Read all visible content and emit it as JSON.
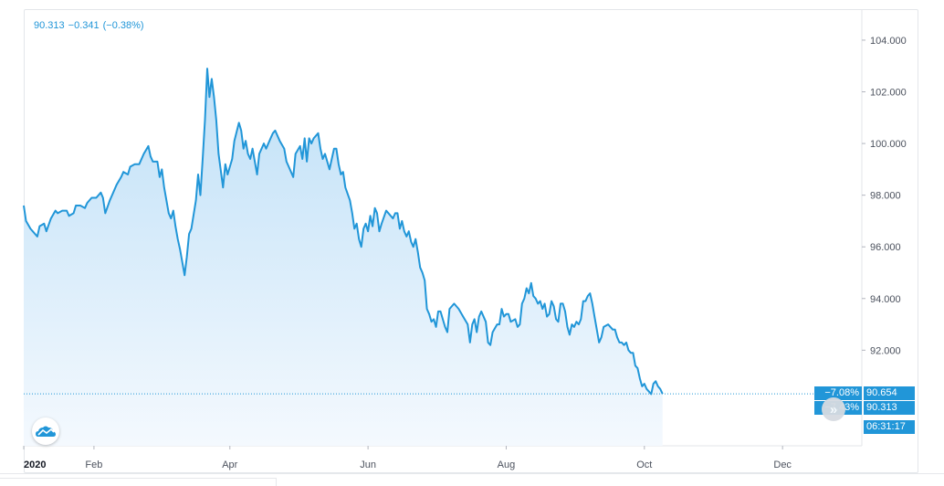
{
  "legend": {
    "last": "90.313",
    "change": "−0.341",
    "change_pct": "(−0.38%)"
  },
  "price_tags": {
    "upper_pct": "−7.08%",
    "upper_value": "90.654",
    "lower_pct": "−7.43%",
    "lower_value": "90.313",
    "countdown": "06:31:17"
  },
  "icons": {
    "logo": "tradingview-cloud-icon",
    "scroll": "double-chevron-right-icon"
  },
  "colors": {
    "line": "#2196d8",
    "fill_top": "#bfe0f7",
    "fill_bottom": "#f4f9fe",
    "tag": "#2196d8",
    "grid": "#eef0f3"
  },
  "chart_data": {
    "type": "area",
    "title": "",
    "xlabel": "",
    "ylabel": "",
    "x_ticks": [
      {
        "label": "2020",
        "day": 0,
        "bold": true
      },
      {
        "label": "Feb",
        "day": 31
      },
      {
        "label": "Apr",
        "day": 91
      },
      {
        "label": "Jun",
        "day": 152
      },
      {
        "label": "Aug",
        "day": 213
      },
      {
        "label": "Oct",
        "day": 274
      },
      {
        "label": "Dec",
        "day": 335
      }
    ],
    "xlim": [
      0,
      370
    ],
    "y_ticks": [
      92,
      94,
      96,
      98,
      100,
      102,
      104
    ],
    "y_tick_labels": [
      "92.000",
      "94.000",
      "96.000",
      "98.000",
      "100.000",
      "102.000",
      "104.000"
    ],
    "ylim": [
      88.3,
      105.2
    ],
    "last_value": 90.313,
    "legend_position": "top-left",
    "grid": false,
    "series": [
      {
        "points": [
          [
            0,
            97.6
          ],
          [
            1,
            97.0
          ],
          [
            3,
            96.7
          ],
          [
            5,
            96.5
          ],
          [
            6,
            96.4
          ],
          [
            7,
            96.8
          ],
          [
            9,
            96.9
          ],
          [
            10,
            96.6
          ],
          [
            12,
            97.1
          ],
          [
            14,
            97.4
          ],
          [
            15,
            97.3
          ],
          [
            17,
            97.4
          ],
          [
            19,
            97.4
          ],
          [
            20,
            97.2
          ],
          [
            22,
            97.3
          ],
          [
            23,
            97.6
          ],
          [
            25,
            97.6
          ],
          [
            27,
            97.5
          ],
          [
            28,
            97.7
          ],
          [
            30,
            97.9
          ],
          [
            32,
            97.9
          ],
          [
            34,
            98.1
          ],
          [
            35,
            97.9
          ],
          [
            36,
            97.3
          ],
          [
            38,
            97.8
          ],
          [
            39,
            98.0
          ],
          [
            41,
            98.4
          ],
          [
            43,
            98.7
          ],
          [
            44,
            98.9
          ],
          [
            46,
            98.8
          ],
          [
            47,
            99.1
          ],
          [
            49,
            99.2
          ],
          [
            51,
            99.2
          ],
          [
            53,
            99.6
          ],
          [
            55,
            99.9
          ],
          [
            56,
            99.5
          ],
          [
            57,
            99.3
          ],
          [
            59,
            99.3
          ],
          [
            60,
            98.7
          ],
          [
            61,
            99.0
          ],
          [
            62,
            98.3
          ],
          [
            64,
            97.3
          ],
          [
            65,
            97.1
          ],
          [
            66,
            97.4
          ],
          [
            67,
            96.8
          ],
          [
            68,
            96.3
          ],
          [
            69,
            95.9
          ],
          [
            71,
            94.9
          ],
          [
            72,
            95.6
          ],
          [
            73,
            96.5
          ],
          [
            74,
            96.7
          ],
          [
            76,
            97.8
          ],
          [
            77,
            98.8
          ],
          [
            78,
            98.0
          ],
          [
            79,
            99.4
          ],
          [
            80,
            100.9
          ],
          [
            81,
            102.9
          ],
          [
            82,
            101.8
          ],
          [
            83,
            102.5
          ],
          [
            84,
            101.8
          ],
          [
            85,
            100.9
          ],
          [
            86,
            99.6
          ],
          [
            88,
            98.3
          ],
          [
            89,
            99.2
          ],
          [
            90,
            98.8
          ],
          [
            92,
            99.4
          ],
          [
            93,
            100.1
          ],
          [
            95,
            100.8
          ],
          [
            96,
            100.5
          ],
          [
            97,
            99.8
          ],
          [
            98,
            100.1
          ],
          [
            99,
            99.6
          ],
          [
            100,
            99.4
          ],
          [
            101,
            99.8
          ],
          [
            103,
            98.8
          ],
          [
            104,
            99.6
          ],
          [
            106,
            100.0
          ],
          [
            107,
            99.8
          ],
          [
            109,
            100.2
          ],
          [
            110,
            100.4
          ],
          [
            111,
            100.5
          ],
          [
            113,
            100.1
          ],
          [
            115,
            99.8
          ],
          [
            116,
            99.3
          ],
          [
            117,
            99.1
          ],
          [
            119,
            98.7
          ],
          [
            120,
            99.6
          ],
          [
            122,
            99.9
          ],
          [
            123,
            99.4
          ],
          [
            124,
            100.2
          ],
          [
            125,
            99.3
          ],
          [
            126,
            100.2
          ],
          [
            127,
            100.0
          ],
          [
            128,
            100.2
          ],
          [
            130,
            100.4
          ],
          [
            131,
            99.8
          ],
          [
            132,
            99.4
          ],
          [
            133,
            99.6
          ],
          [
            135,
            99.0
          ],
          [
            136,
            99.4
          ],
          [
            137,
            99.8
          ],
          [
            138,
            99.8
          ],
          [
            139,
            99.2
          ],
          [
            140,
            98.8
          ],
          [
            141,
            98.9
          ],
          [
            142,
            98.3
          ],
          [
            144,
            97.8
          ],
          [
            145,
            97.3
          ],
          [
            146,
            96.7
          ],
          [
            147,
            96.9
          ],
          [
            148,
            96.3
          ],
          [
            149,
            96.0
          ],
          [
            150,
            96.7
          ],
          [
            151,
            96.9
          ],
          [
            152,
            96.6
          ],
          [
            153,
            97.2
          ],
          [
            154,
            96.8
          ],
          [
            155,
            97.5
          ],
          [
            156,
            97.3
          ],
          [
            157,
            96.6
          ],
          [
            158,
            96.9
          ],
          [
            160,
            97.4
          ],
          [
            161,
            97.3
          ],
          [
            163,
            97.1
          ],
          [
            164,
            97.3
          ],
          [
            165,
            97.3
          ],
          [
            166,
            96.7
          ],
          [
            167,
            97.0
          ],
          [
            168,
            96.6
          ],
          [
            169,
            96.4
          ],
          [
            170,
            96.6
          ],
          [
            171,
            96.2
          ],
          [
            172,
            96.0
          ],
          [
            173,
            96.3
          ],
          [
            174,
            95.8
          ],
          [
            175,
            95.2
          ],
          [
            176,
            95.0
          ],
          [
            177,
            94.7
          ],
          [
            178,
            93.6
          ],
          [
            179,
            93.4
          ],
          [
            180,
            93.1
          ],
          [
            181,
            93.2
          ],
          [
            182,
            92.9
          ],
          [
            183,
            93.5
          ],
          [
            184,
            93.5
          ],
          [
            185,
            93.2
          ],
          [
            186,
            92.9
          ],
          [
            187,
            92.7
          ],
          [
            188,
            93.6
          ],
          [
            190,
            93.8
          ],
          [
            192,
            93.6
          ],
          [
            194,
            93.3
          ],
          [
            196,
            93.0
          ],
          [
            197,
            92.3
          ],
          [
            198,
            93.0
          ],
          [
            199,
            93.2
          ],
          [
            200,
            92.7
          ],
          [
            201,
            93.3
          ],
          [
            202,
            93.5
          ],
          [
            204,
            93.1
          ],
          [
            205,
            92.3
          ],
          [
            206,
            92.2
          ],
          [
            207,
            92.7
          ],
          [
            209,
            93.0
          ],
          [
            210,
            93.0
          ],
          [
            211,
            93.6
          ],
          [
            212,
            93.3
          ],
          [
            213,
            93.4
          ],
          [
            214,
            93.4
          ],
          [
            215,
            93.1
          ],
          [
            217,
            93.2
          ],
          [
            218,
            92.9
          ],
          [
            219,
            93.0
          ],
          [
            220,
            93.8
          ],
          [
            221,
            94.0
          ],
          [
            222,
            94.4
          ],
          [
            223,
            94.2
          ],
          [
            224,
            94.6
          ],
          [
            225,
            94.1
          ],
          [
            226,
            94.0
          ],
          [
            227,
            93.8
          ],
          [
            228,
            93.9
          ],
          [
            229,
            93.6
          ],
          [
            230,
            93.8
          ],
          [
            231,
            93.3
          ],
          [
            232,
            93.4
          ],
          [
            233,
            93.9
          ],
          [
            234,
            93.7
          ],
          [
            235,
            93.2
          ],
          [
            236,
            93.1
          ],
          [
            237,
            93.8
          ],
          [
            238,
            93.8
          ],
          [
            239,
            93.5
          ],
          [
            240,
            92.9
          ],
          [
            241,
            92.6
          ],
          [
            242,
            93.0
          ],
          [
            243,
            92.9
          ],
          [
            244,
            93.1
          ],
          [
            245,
            93.0
          ],
          [
            246,
            93.2
          ],
          [
            247,
            93.9
          ],
          [
            248,
            93.9
          ],
          [
            249,
            94.1
          ],
          [
            250,
            94.2
          ],
          [
            251,
            93.8
          ],
          [
            252,
            93.3
          ],
          [
            253,
            92.8
          ],
          [
            254,
            92.3
          ],
          [
            255,
            92.5
          ],
          [
            256,
            92.9
          ],
          [
            258,
            93.0
          ],
          [
            259,
            92.9
          ],
          [
            260,
            92.8
          ],
          [
            261,
            92.8
          ],
          [
            262,
            92.5
          ],
          [
            263,
            92.3
          ],
          [
            264,
            92.3
          ],
          [
            265,
            92.2
          ],
          [
            266,
            92.3
          ],
          [
            267,
            92.0
          ],
          [
            268,
            91.9
          ],
          [
            269,
            91.9
          ],
          [
            270,
            91.4
          ],
          [
            271,
            91.3
          ],
          [
            272,
            90.9
          ],
          [
            273,
            90.6
          ],
          [
            274,
            90.7
          ],
          [
            275,
            90.5
          ],
          [
            276,
            90.4
          ],
          [
            277,
            90.3
          ],
          [
            278,
            90.7
          ],
          [
            279,
            90.8
          ],
          [
            280,
            90.6
          ],
          [
            281,
            90.5
          ],
          [
            282,
            90.313
          ]
        ]
      }
    ]
  }
}
